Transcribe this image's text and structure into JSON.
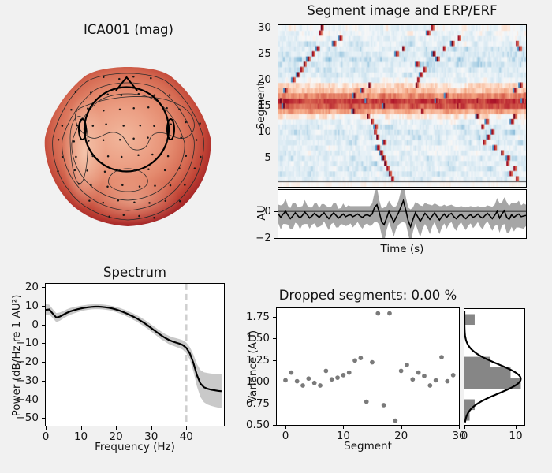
{
  "colors": {
    "background": "#f1f1f1",
    "axes_bg": "#ffffff",
    "spine": "#000000",
    "text": "#141414",
    "scatter_dot": "#7a7a7a",
    "hist_bar": "#868686",
    "spectrum_band": "#c9c9c9",
    "erp_band": "#a6a6a6",
    "dashed_line": "#cfcfcf",
    "heat_strong_red": "#b2182b",
    "heat_light_blue": "#d1e5f0",
    "topo_edge_dark_red": "#8c181f",
    "topo_center_light": "#f0b598"
  },
  "panels": {
    "topomap": {
      "title": "ICA001 (mag)"
    },
    "segment_image": {
      "title": "Segment image and ERP/ERF",
      "ylabel": "Segment"
    },
    "erp": {
      "ylabel": "AU",
      "xlabel": "Time (s)"
    },
    "spectrum": {
      "title": "Spectrum",
      "xlabel": "Frequency (Hz)",
      "ylabel": "Power (dB/Hz re 1 AU²)"
    },
    "variance": {
      "title": "Dropped segments: 0.00 %",
      "xlabel": "Segment",
      "ylabel": "Variance (AU)"
    }
  },
  "chart_data": [
    {
      "id": "segment_image",
      "type": "heatmap",
      "title": "Segment image and ERP/ERF",
      "ylabel": "Segment",
      "yticks": [
        5,
        10,
        15,
        20,
        25,
        30
      ],
      "rows": 30,
      "colormap": "RdBu_r",
      "value_range": [
        -1,
        1
      ],
      "row_values": [
        -0.13,
        -0.15,
        -0.12,
        -0.14,
        -0.16,
        -0.13,
        -0.12,
        -0.15,
        -0.17,
        -0.19,
        -0.16,
        -0.1,
        0.06,
        0.32,
        0.62,
        0.74,
        0.45,
        0.25,
        0.12,
        -0.1,
        -0.15,
        -0.18,
        -0.2,
        -0.22,
        -0.2,
        -0.18,
        -0.15,
        -0.1,
        -0.08,
        -0.06
      ],
      "streaks": [
        [
          1,
          0.455
        ],
        [
          2,
          0.445
        ],
        [
          3,
          0.438
        ],
        [
          4,
          0.428
        ],
        [
          5,
          0.42
        ],
        [
          6,
          0.412
        ],
        [
          7,
          0.4
        ],
        [
          8,
          0.425
        ],
        [
          9,
          0.396
        ],
        [
          10,
          0.385
        ],
        [
          11,
          0.39
        ],
        [
          12,
          0.372
        ],
        [
          13,
          0.358
        ],
        [
          1,
          0.96
        ],
        [
          2,
          0.935
        ],
        [
          3,
          0.95
        ],
        [
          4,
          0.92
        ],
        [
          5,
          0.925
        ],
        [
          6,
          0.9
        ],
        [
          7,
          0.87
        ],
        [
          8,
          0.825
        ],
        [
          9,
          0.845
        ],
        [
          10,
          0.86
        ],
        [
          11,
          0.82
        ],
        [
          12,
          0.84
        ],
        [
          13,
          0.8
        ],
        [
          14,
          0.3
        ],
        [
          14,
          0.575
        ],
        [
          15,
          0.02
        ],
        [
          15,
          0.425
        ],
        [
          15,
          0.72
        ],
        [
          16,
          0.005
        ],
        [
          16,
          0.355
        ],
        [
          16,
          0.635
        ],
        [
          16,
          0.8
        ],
        [
          16,
          0.985
        ],
        [
          17,
          0.305
        ],
        [
          17,
          0.675
        ],
        [
          17,
          0.995
        ],
        [
          18,
          0.025
        ],
        [
          18,
          0.335
        ],
        [
          18,
          0.952
        ],
        [
          19,
          0.365
        ],
        [
          19,
          0.555
        ],
        [
          19,
          0.975
        ],
        [
          20,
          0.56
        ],
        [
          21,
          0.572
        ],
        [
          22,
          0.586
        ],
        [
          23,
          0.556
        ],
        [
          24,
          0.64
        ],
        [
          25,
          0.622
        ],
        [
          26,
          0.665
        ],
        [
          27,
          0.7
        ],
        [
          28,
          0.726
        ],
        [
          29,
          0.6
        ],
        [
          30,
          0.617
        ],
        [
          20,
          0.056
        ],
        [
          21,
          0.076
        ],
        [
          22,
          0.088
        ],
        [
          23,
          0.102
        ],
        [
          24,
          0.117
        ],
        [
          25,
          0.136
        ],
        [
          26,
          0.156
        ],
        [
          27,
          0.22
        ],
        [
          28,
          0.246
        ],
        [
          29,
          0.166
        ],
        [
          30,
          0.172
        ],
        [
          26,
          0.97
        ],
        [
          27,
          0.958
        ],
        [
          13,
          0.948
        ],
        [
          25,
          0.475
        ],
        [
          26,
          0.5
        ],
        [
          12,
          0.94
        ]
      ]
    },
    {
      "id": "erp",
      "type": "line",
      "xlabel": "Time (s)",
      "ylabel": "AU",
      "yticks": [
        0,
        -2
      ],
      "ylim": [
        -2,
        1.6
      ],
      "mean": [
        -0.2,
        -0.45,
        -0.2,
        0.0,
        -0.3,
        -0.55,
        -0.35,
        -0.1,
        -0.3,
        -0.5,
        -0.3,
        -0.05,
        -0.25,
        -0.5,
        -0.35,
        -0.15,
        -0.3,
        -0.45,
        -0.25,
        -0.1,
        -0.35,
        -0.55,
        -0.3,
        -0.1,
        -0.3,
        -0.5,
        -0.35,
        -0.2,
        -0.4,
        -0.3,
        -0.25,
        -0.4,
        -0.3,
        -0.2,
        -0.35,
        -0.45,
        -0.3,
        -0.25,
        -0.35,
        -0.2,
        0.3,
        0.5,
        -0.1,
        -0.8,
        -1.0,
        -0.5,
        0.0,
        -0.4,
        -0.8,
        -0.45,
        -0.1,
        0.35,
        0.8,
        0.1,
        -0.7,
        -1.15,
        -0.6,
        -0.1,
        -0.4,
        -0.75,
        -0.45,
        -0.15,
        -0.35,
        -0.6,
        -0.35,
        -0.1,
        -0.4,
        -0.65,
        -0.4,
        -0.2,
        -0.45,
        -0.25,
        -0.15,
        -0.4,
        -0.55,
        -0.35,
        -0.2,
        -0.4,
        -0.55,
        -0.35,
        -0.25,
        -0.45,
        -0.35,
        -0.2,
        -0.4,
        -0.5,
        -0.3,
        -0.15,
        -0.35,
        -0.55,
        -0.3,
        0.0,
        -0.5,
        -0.2,
        0.05,
        -0.45,
        -0.6,
        -0.25,
        -0.45,
        -0.3,
        -0.2,
        -0.4,
        -0.35,
        -0.3
      ],
      "sd": [
        0.7,
        0.9,
        0.75,
        0.95,
        0.7,
        0.8,
        1.0,
        0.75,
        0.65,
        0.85,
        0.7,
        0.9,
        0.7,
        0.8,
        0.65,
        0.75,
        0.9,
        0.7,
        0.8,
        0.65,
        0.75,
        0.85,
        0.65,
        0.75,
        0.9,
        0.7,
        0.6,
        0.8,
        0.7,
        0.75,
        0.65,
        0.8,
        0.7,
        0.6,
        0.75,
        0.85,
        0.7,
        0.65,
        0.75,
        0.8,
        1.1,
        1.3,
        0.9,
        1.0,
        1.3,
        0.9,
        0.8,
        0.9,
        1.1,
        0.85,
        0.9,
        1.2,
        1.6,
        1.0,
        1.0,
        1.3,
        0.9,
        0.8,
        1.0,
        1.2,
        0.85,
        0.8,
        0.9,
        1.1,
        0.8,
        0.7,
        0.9,
        1.05,
        0.8,
        0.7,
        0.85,
        0.7,
        0.65,
        0.8,
        0.9,
        0.7,
        0.6,
        0.75,
        0.85,
        0.7,
        0.65,
        0.8,
        0.7,
        0.6,
        0.75,
        0.85,
        0.65,
        0.6,
        0.75,
        0.9,
        0.8,
        1.0,
        1.1,
        0.85,
        1.0,
        1.15,
        1.0,
        0.9,
        1.05,
        0.9,
        1.0,
        0.85,
        0.95,
        0.8
      ]
    },
    {
      "id": "spectrum",
      "type": "line",
      "title": "Spectrum",
      "xlabel": "Frequency (Hz)",
      "ylabel": "Power (dB/Hz re 1 AU²)",
      "xticks": [
        0,
        10,
        20,
        30,
        40
      ],
      "yticks": [
        20,
        10,
        0,
        -10,
        -20,
        -30,
        -40,
        -50
      ],
      "xlim": [
        0,
        50.7
      ],
      "ylim": [
        -54,
        21.7
      ],
      "vline_x": 40,
      "freq_start": 0,
      "freq_step": 1,
      "power": [
        7.8,
        8.0,
        5.8,
        3.7,
        4.2,
        5.2,
        6.2,
        7.0,
        7.6,
        8.1,
        8.5,
        8.9,
        9.2,
        9.4,
        9.5,
        9.5,
        9.4,
        9.2,
        8.9,
        8.5,
        8.0,
        7.4,
        6.7,
        5.9,
        5.0,
        4.1,
        3.1,
        2.0,
        0.8,
        -0.5,
        -1.9,
        -3.3,
        -4.7,
        -6.0,
        -7.2,
        -8.2,
        -9.0,
        -9.6,
        -10.2,
        -11.0,
        -12.5,
        -15.5,
        -20.5,
        -27.0,
        -31.5,
        -33.5,
        -34.3,
        -34.8,
        -35.1,
        -35.4,
        -35.6
      ],
      "sd": [
        3.0,
        2.6,
        2.4,
        2.4,
        2.2,
        2.0,
        1.9,
        1.8,
        1.7,
        1.6,
        1.5,
        1.4,
        1.4,
        1.3,
        1.3,
        1.3,
        1.3,
        1.3,
        1.3,
        1.4,
        1.4,
        1.5,
        1.5,
        1.6,
        1.6,
        1.7,
        1.7,
        1.8,
        1.8,
        1.9,
        1.9,
        2.0,
        2.0,
        2.1,
        2.1,
        2.2,
        2.2,
        2.3,
        2.4,
        2.5,
        2.8,
        3.4,
        4.5,
        6.0,
        7.2,
        8.0,
        8.4,
        8.6,
        8.8,
        8.9,
        9.0
      ]
    },
    {
      "id": "variance_scatter",
      "type": "scatter",
      "title": "Dropped segments: 0.00 %",
      "xlabel": "Segment",
      "ylabel": "Variance (AU)",
      "xticks": [
        0,
        10,
        20,
        30
      ],
      "ytick_labels": [
        "0.50",
        "0.75",
        "1.00",
        "1.25",
        "1.50",
        "1.75"
      ],
      "ytick_values": [
        0.5,
        0.75,
        1.0,
        1.25,
        1.5,
        1.75
      ],
      "xlim": [
        -1.5,
        30
      ],
      "ylim": [
        0.5,
        1.86
      ],
      "values": [
        1.02,
        1.11,
        1.01,
        0.96,
        1.04,
        0.99,
        0.96,
        1.13,
        1.03,
        1.05,
        1.08,
        1.11,
        1.25,
        1.28,
        0.77,
        1.23,
        1.8,
        0.73,
        1.8,
        0.55,
        1.13,
        1.2,
        1.03,
        1.11,
        1.07,
        0.96,
        1.02,
        1.29,
        1.01,
        1.08
      ]
    },
    {
      "id": "variance_hist",
      "type": "bar",
      "orientation": "horizontal",
      "bin_start": 0.55,
      "bin_width": 0.125,
      "counts": [
        1,
        2,
        0,
        11,
        9,
        5,
        0,
        0,
        0,
        2
      ],
      "xticks": [
        0,
        10
      ],
      "xlim": [
        0,
        11.7
      ],
      "gauss": {
        "mu": 1.04,
        "sigma": 0.17,
        "amp": 11
      }
    }
  ]
}
